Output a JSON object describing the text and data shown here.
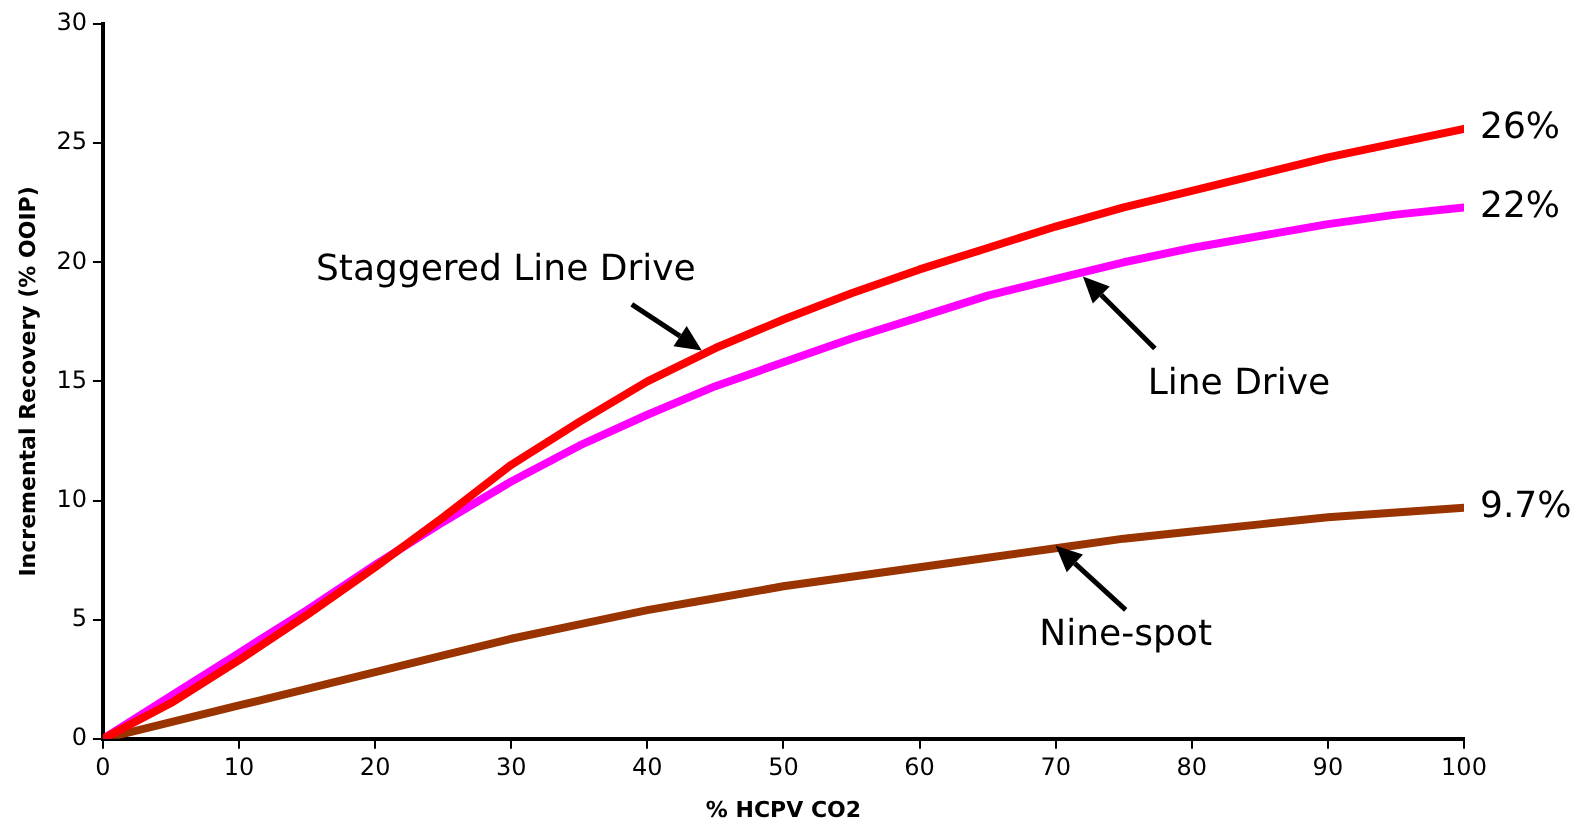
{
  "chart_data": {
    "type": "line",
    "xlabel": "% HCPV CO2",
    "ylabel": "Incremental Recovery (% OOIP)",
    "x": [
      0,
      5,
      10,
      15,
      20,
      25,
      30,
      35,
      40,
      45,
      50,
      55,
      60,
      65,
      70,
      75,
      80,
      85,
      90,
      95,
      100
    ],
    "series": [
      {
        "color": "#ff0000",
        "values": [
          0,
          1.5,
          3.3,
          5.2,
          7.2,
          9.3,
          11.5,
          13.3,
          15,
          16.4,
          17.6,
          18.7,
          19.7,
          20.6,
          21.5,
          22.3,
          23.0,
          23.7,
          24.4,
          25.0,
          25.6
        ]
      },
      {
        "color": "#ff00ff",
        "values": [
          0,
          1.8,
          3.6,
          5.4,
          7.3,
          9.1,
          10.8,
          12.3,
          13.6,
          14.8,
          15.8,
          16.8,
          17.7,
          18.6,
          19.3,
          20.0,
          20.6,
          21.1,
          21.6,
          22.0,
          22.3
        ]
      },
      {
        "color": "#993300",
        "values": [
          0,
          0.7,
          1.4,
          2.1,
          2.8,
          3.5,
          4.2,
          4.8,
          5.4,
          5.9,
          6.4,
          6.8,
          7.2,
          7.6,
          8.0,
          8.4,
          8.7,
          9.0,
          9.3,
          9.5,
          9.7
        ]
      }
    ],
    "xlim": [
      0,
      100
    ],
    "xticks": [
      0,
      10,
      20,
      30,
      40,
      50,
      60,
      70,
      80,
      90,
      100
    ],
    "ylim": [
      0,
      30
    ],
    "yticks": [
      0,
      5,
      10,
      15,
      20,
      25,
      30
    ],
    "grid": false,
    "legend": false,
    "marker": "none",
    "line_style": "solid",
    "annotations": [
      {
        "text": "Staggered Line Drive",
        "x": 44,
        "y": 16.3
      },
      {
        "text": "Line Drive",
        "x": 72,
        "y": 19.4
      },
      {
        "text": "Nine-spot",
        "x": 70,
        "y": 8.1
      },
      {
        "text": "26%",
        "x": 100,
        "y": 25.6
      },
      {
        "text": "22%",
        "x": 100,
        "y": 22.3
      },
      {
        "text": "9.7%",
        "x": 100,
        "y": 9.7
      }
    ]
  }
}
